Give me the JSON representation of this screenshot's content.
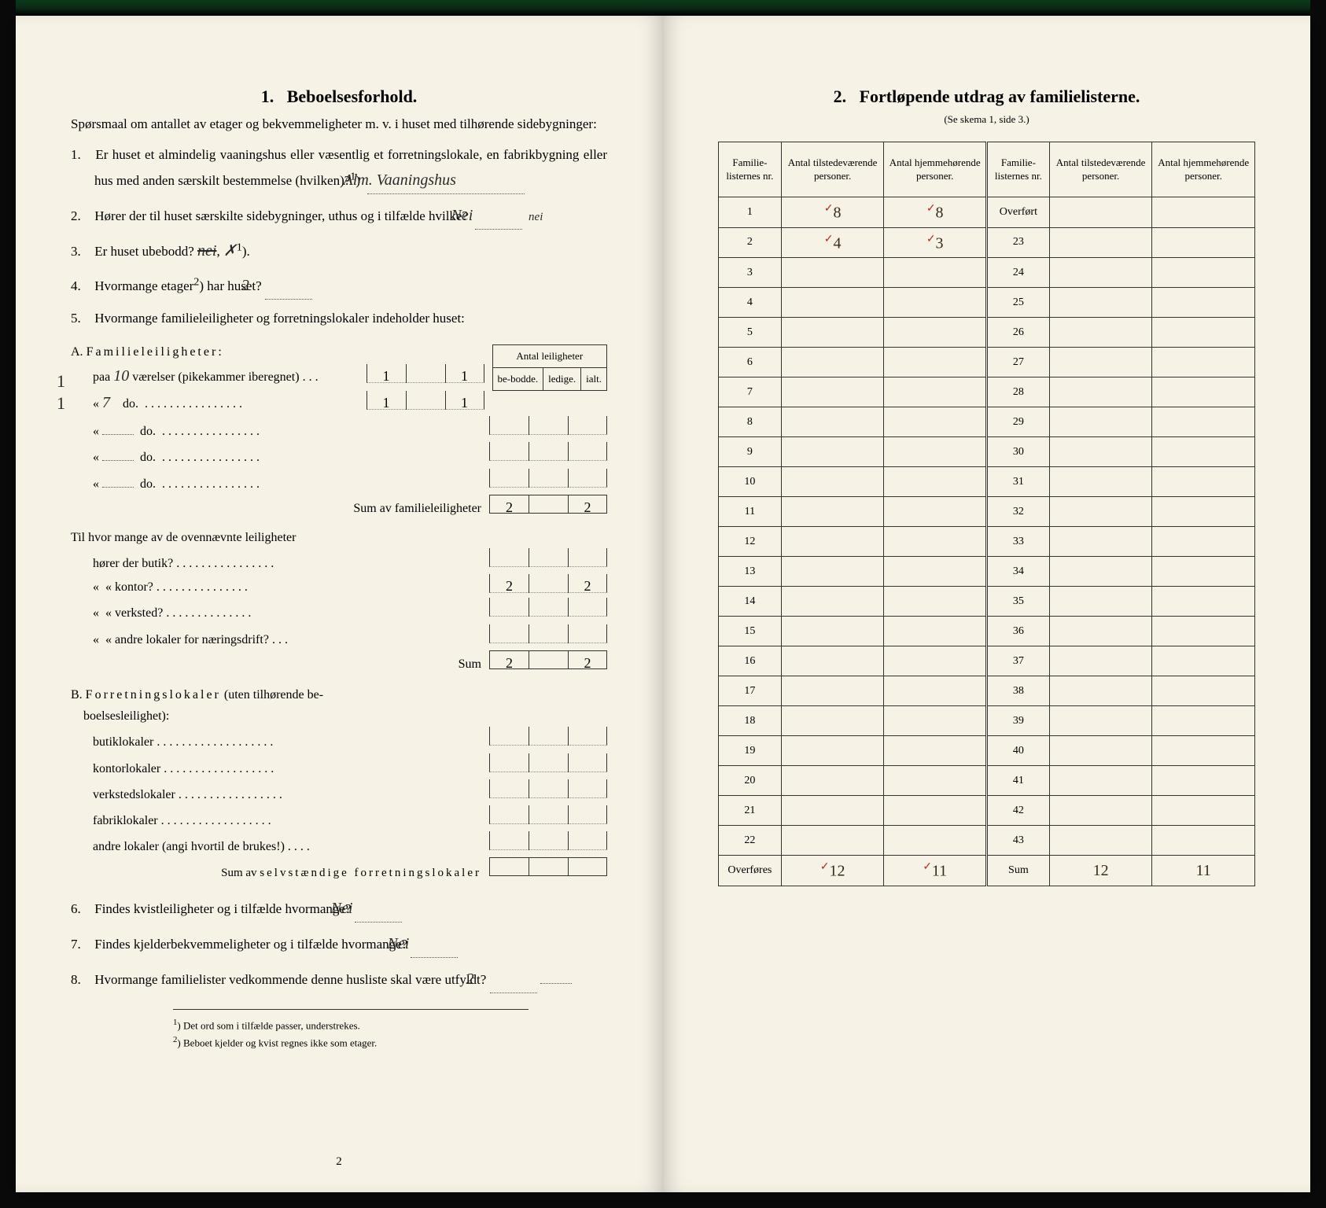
{
  "left": {
    "section_number": "1.",
    "section_title": "Beboelsesforhold.",
    "intro": "Spørsmaal om antallet av etager og bekvemmeligheter m. v. i huset med tilhørende sidebygninger:",
    "q1": {
      "num": "1.",
      "text_a": "Er huset et almindelig vaaningshus eller væsentlig et forretningslokale, en fabrikbygning eller hus med anden særskilt bestemmelse (hvilken)?",
      "sup": "1",
      "answer": "Alm. Vaaningshus"
    },
    "q2": {
      "num": "2.",
      "text": "Hører der til huset særskilte sidebygninger, uthus og i tilfælde hvilke?",
      "answer": "Nei",
      "extra": "nei"
    },
    "q3": {
      "num": "3.",
      "text": "Er huset ubebodd?",
      "answer": "nei",
      "sup": "1"
    },
    "q4": {
      "num": "4.",
      "text_a": "Hvormange etager",
      "sup": "2",
      "text_b": " har huset?",
      "answer": "2"
    },
    "q5": {
      "num": "5.",
      "text": "Hvormange familieleiligheter og forretningslokaler indeholder huset:"
    },
    "table_header": {
      "span": "Antal leiligheter",
      "c1": "be-bodde.",
      "c2": "ledige.",
      "c3": "ialt."
    },
    "sectionA": {
      "label": "A. Familieleiligheter:",
      "margin1": "1",
      "margin2": "1",
      "row1_pre": "paa",
      "row1_hw": "10",
      "row1_text": "værelser (pikekammer iberegnet)",
      "row1_v1": "1",
      "row1_v3": "1",
      "row2_hw": "7",
      "row2_text": "do.",
      "row2_v1": "1",
      "row2_v3": "1",
      "row_do": "do.",
      "sum_label": "Sum av familieleiligheter",
      "sum_v1": "2",
      "sum_v3": "2",
      "sub_intro": "Til hvor mange av de ovennævnte leiligheter",
      "sub_r1": "hører der butik?",
      "sub_r2": "kontor?",
      "sub_r2_v1": "2",
      "sub_r2_v3": "2",
      "sub_r3": "verksted?",
      "sub_r4": "andre lokaler for næringsdrift?",
      "sum2": "Sum",
      "sum2_v1": "2",
      "sum2_v3": "2"
    },
    "sectionB": {
      "label": "B. Forretningslokaler (uten tilhørende beboelsesleilighet):",
      "r1": "butiklokaler",
      "r2": "kontorlokaler",
      "r3": "verkstedslokaler",
      "r4": "fabriklokaler",
      "r5": "andre lokaler (angi hvortil de brukes!)",
      "sum": "Sum av selvstændige forretningslokaler"
    },
    "q6": {
      "num": "6.",
      "text": "Findes kvistleiligheter og i tilfælde hvormange?",
      "answer": "Nei"
    },
    "q7": {
      "num": "7.",
      "text": "Findes kjelderbekvemmeligheter og i tilfælde hvormange?",
      "answer": "Nei"
    },
    "q8": {
      "num": "8.",
      "text": "Hvormange familielister vedkommende denne husliste skal være utfyldt?",
      "answer": "2"
    },
    "footnote1": "Det ord som i tilfælde passer, understrekes.",
    "footnote2": "Beboet kjelder og kvist regnes ikke som etager.",
    "footnote1_sup": "1",
    "footnote2_sup": "2",
    "page_number": "2"
  },
  "right": {
    "section_number": "2.",
    "section_title": "Fortløpende utdrag av familielisterne.",
    "subtitle": "(Se skema 1, side 3.)",
    "headers": {
      "c1": "Familie-listernes nr.",
      "c2": "Antal tilstedeværende personer.",
      "c3": "Antal hjemmehørende personer.",
      "c4": "Familie-listernes nr.",
      "c5": "Antal tilstedeværende personer.",
      "c6": "Antal hjemmehørende personer."
    },
    "overfort": "Overført",
    "overfores": "Overføres",
    "sum": "Sum",
    "rows_left": [
      {
        "n": "1",
        "a": "8",
        "b": "8"
      },
      {
        "n": "2",
        "a": "4",
        "b": "3"
      },
      {
        "n": "3",
        "a": "",
        "b": ""
      },
      {
        "n": "4",
        "a": "",
        "b": ""
      },
      {
        "n": "5",
        "a": "",
        "b": ""
      },
      {
        "n": "6",
        "a": "",
        "b": ""
      },
      {
        "n": "7",
        "a": "",
        "b": ""
      },
      {
        "n": "8",
        "a": "",
        "b": ""
      },
      {
        "n": "9",
        "a": "",
        "b": ""
      },
      {
        "n": "10",
        "a": "",
        "b": ""
      },
      {
        "n": "11",
        "a": "",
        "b": ""
      },
      {
        "n": "12",
        "a": "",
        "b": ""
      },
      {
        "n": "13",
        "a": "",
        "b": ""
      },
      {
        "n": "14",
        "a": "",
        "b": ""
      },
      {
        "n": "15",
        "a": "",
        "b": ""
      },
      {
        "n": "16",
        "a": "",
        "b": ""
      },
      {
        "n": "17",
        "a": "",
        "b": ""
      },
      {
        "n": "18",
        "a": "",
        "b": ""
      },
      {
        "n": "19",
        "a": "",
        "b": ""
      },
      {
        "n": "20",
        "a": "",
        "b": ""
      },
      {
        "n": "21",
        "a": "",
        "b": ""
      },
      {
        "n": "22",
        "a": "",
        "b": ""
      }
    ],
    "rows_right_nums": [
      "23",
      "24",
      "25",
      "26",
      "27",
      "28",
      "29",
      "30",
      "31",
      "32",
      "33",
      "34",
      "35",
      "36",
      "37",
      "38",
      "39",
      "40",
      "41",
      "42",
      "43"
    ],
    "totals_left": {
      "a": "12",
      "b": "11"
    },
    "totals_right": {
      "a": "12",
      "b": "11"
    }
  },
  "colors": {
    "paper": "#f6f2e6",
    "ink": "#1a1a1a",
    "red_tick": "#b03020",
    "handwriting": "#3a2a1a"
  }
}
